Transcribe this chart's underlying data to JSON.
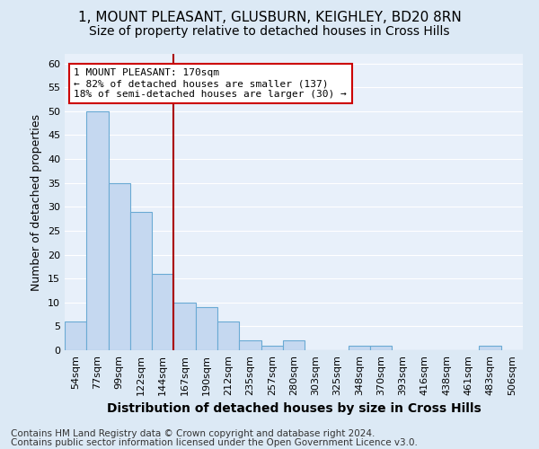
{
  "title": "1, MOUNT PLEASANT, GLUSBURN, KEIGHLEY, BD20 8RN",
  "subtitle": "Size of property relative to detached houses in Cross Hills",
  "xlabel": "Distribution of detached houses by size in Cross Hills",
  "ylabel": "Number of detached properties",
  "footnote1": "Contains HM Land Registry data © Crown copyright and database right 2024.",
  "footnote2": "Contains public sector information licensed under the Open Government Licence v3.0.",
  "bar_labels": [
    "54sqm",
    "77sqm",
    "99sqm",
    "122sqm",
    "144sqm",
    "167sqm",
    "190sqm",
    "212sqm",
    "235sqm",
    "257sqm",
    "280sqm",
    "303sqm",
    "325sqm",
    "348sqm",
    "370sqm",
    "393sqm",
    "416sqm",
    "438sqm",
    "461sqm",
    "483sqm",
    "506sqm"
  ],
  "bar_values": [
    6,
    50,
    35,
    29,
    16,
    10,
    9,
    6,
    2,
    1,
    2,
    0,
    0,
    1,
    1,
    0,
    0,
    0,
    0,
    1,
    0
  ],
  "bar_color": "#c5d8f0",
  "bar_edge_color": "#6aaad4",
  "background_color": "#dce9f5",
  "plot_bg_color": "#e8f0fa",
  "grid_color": "#ffffff",
  "ylim": [
    0,
    62
  ],
  "yticks": [
    0,
    5,
    10,
    15,
    20,
    25,
    30,
    35,
    40,
    45,
    50,
    55,
    60
  ],
  "property_label": "1 MOUNT PLEASANT: 170sqm",
  "annotation_line1": "← 82% of detached houses are smaller (137)",
  "annotation_line2": "18% of semi-detached houses are larger (30) →",
  "vline_x": 4.5,
  "annotation_box_color": "#ffffff",
  "annotation_box_edge": "#cc0000",
  "vline_color": "#aa0000",
  "title_fontsize": 11,
  "subtitle_fontsize": 10,
  "xlabel_fontsize": 10,
  "ylabel_fontsize": 9,
  "tick_fontsize": 8,
  "annotation_fontsize": 8,
  "footnote_fontsize": 7.5
}
